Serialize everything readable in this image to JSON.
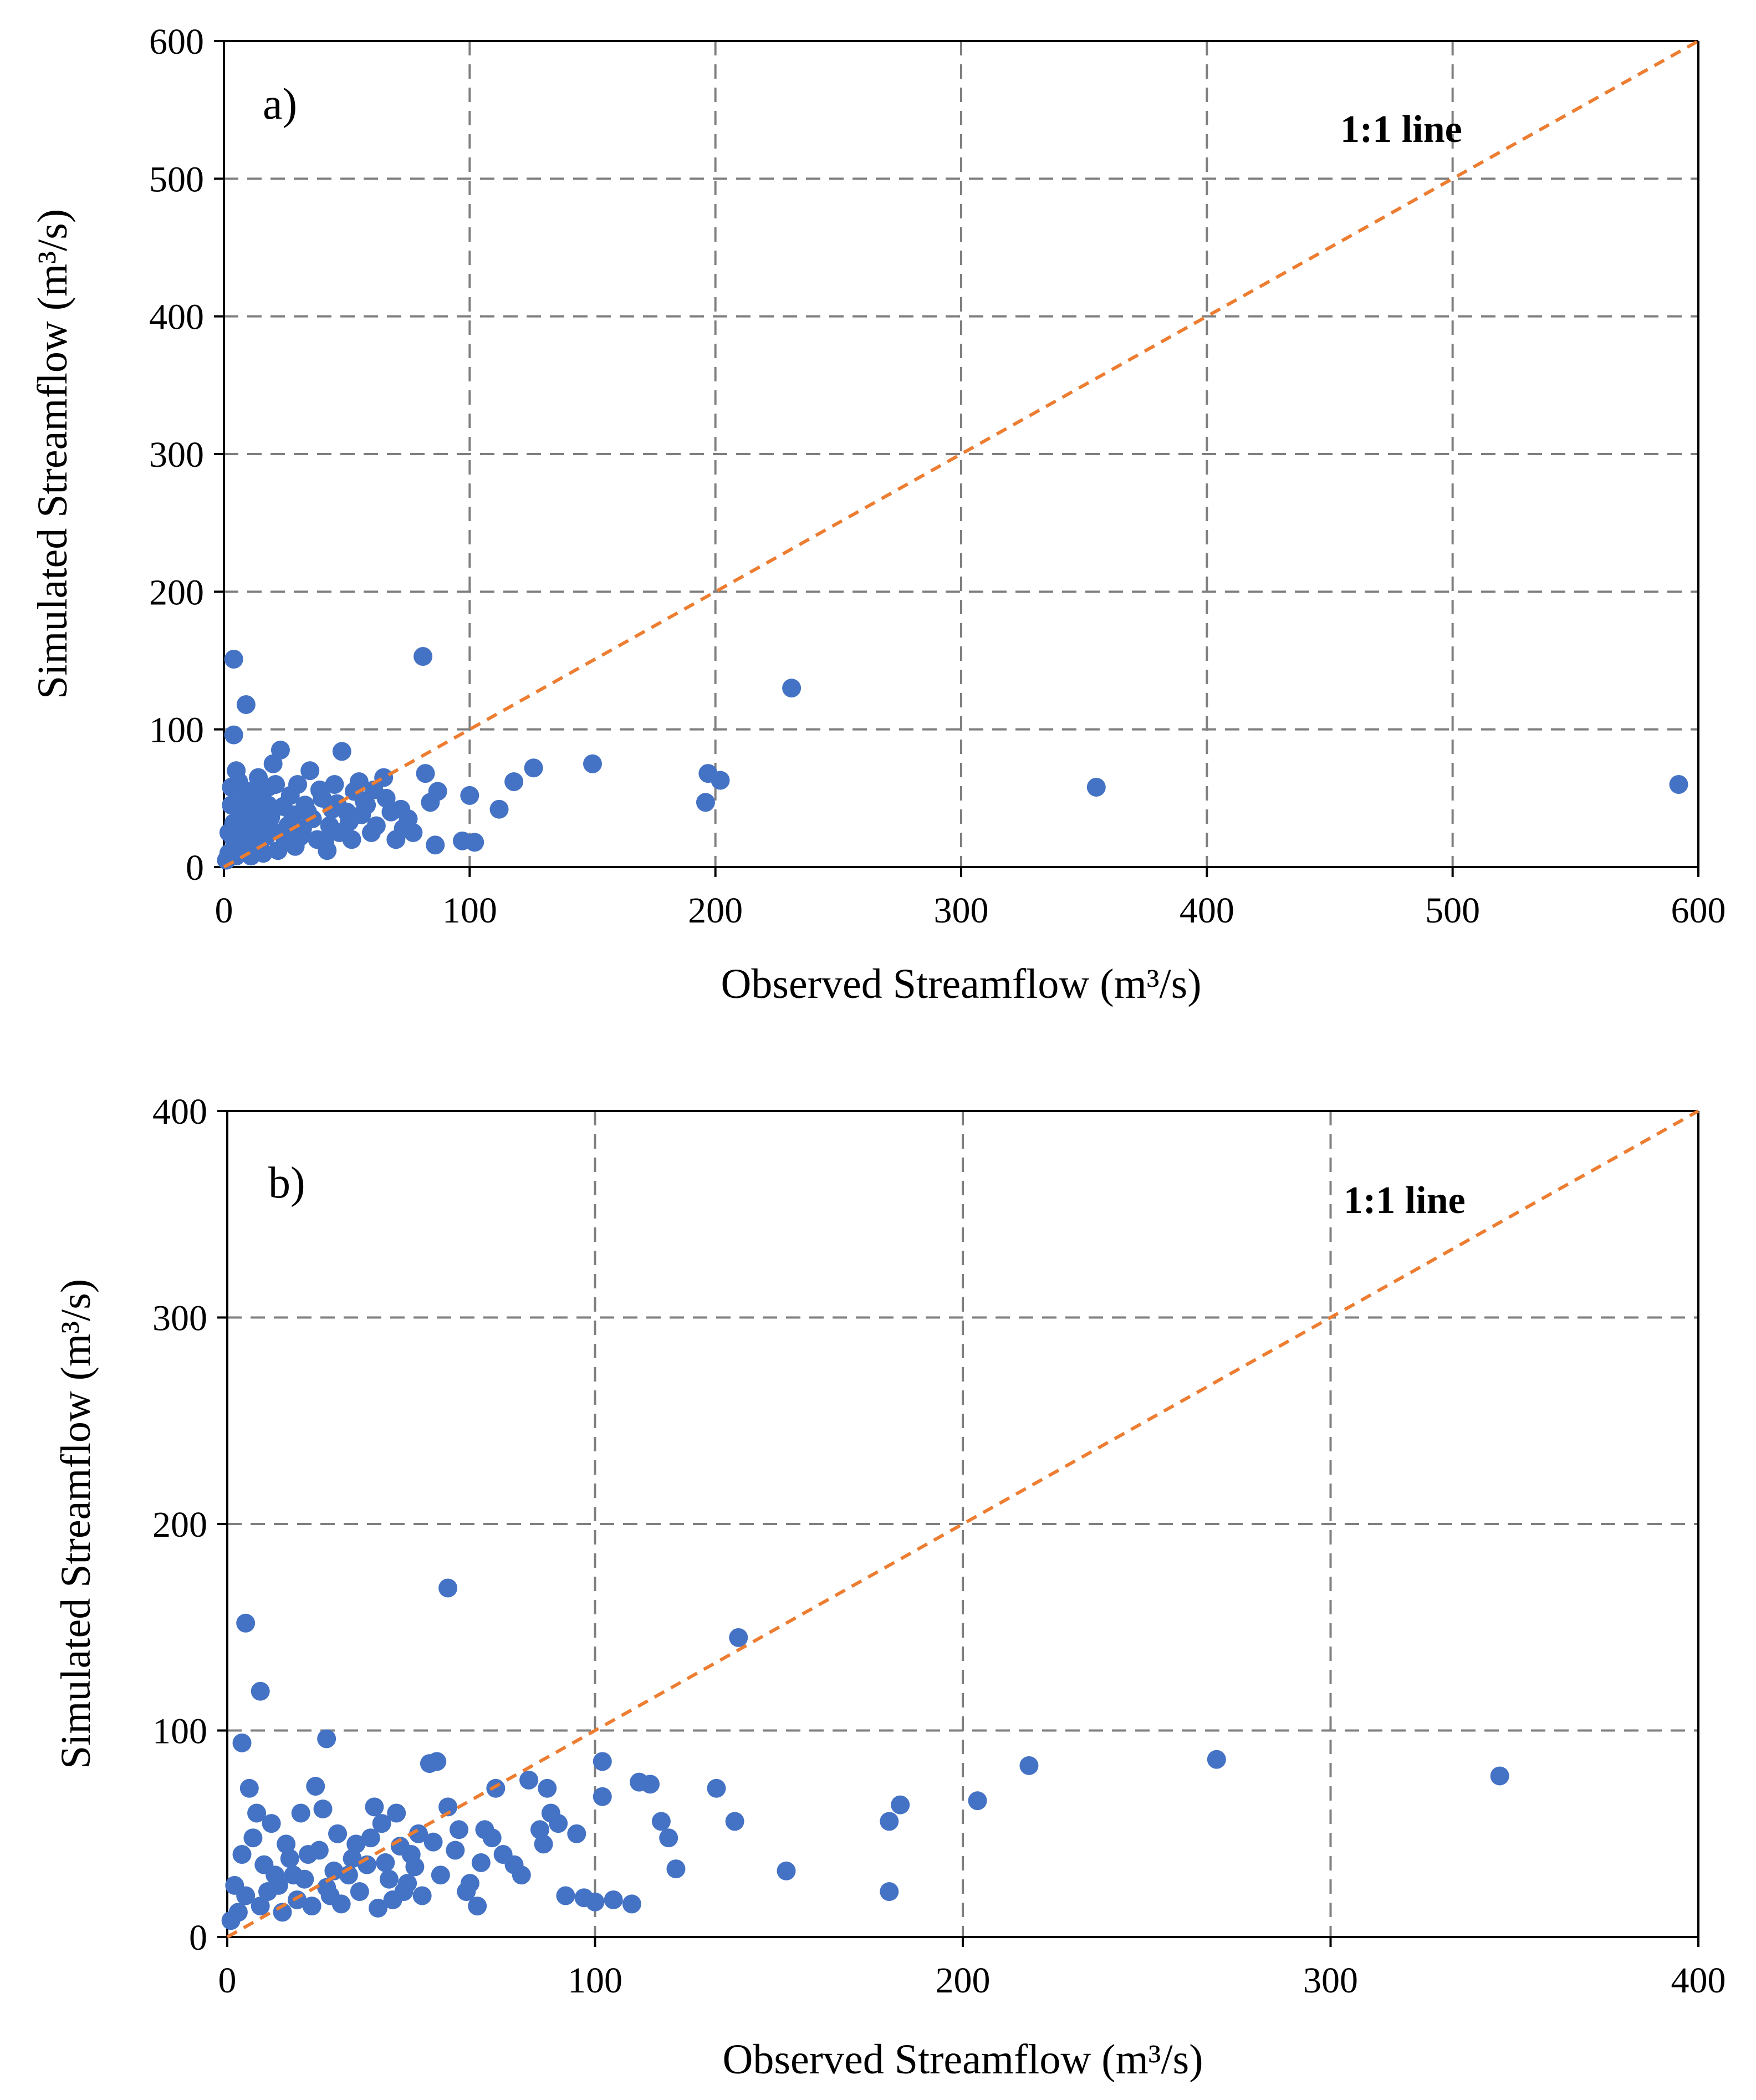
{
  "chart_data": [
    {
      "type": "scatter",
      "panel_label": "a)",
      "xlabel": "Observed Streamflow (m³/s)",
      "ylabel": "Simulated Streamflow (m³/s)",
      "xlim": [
        0,
        600
      ],
      "ylim": [
        0,
        600
      ],
      "xticks": [
        0,
        100,
        200,
        300,
        400,
        500,
        600
      ],
      "yticks": [
        0,
        100,
        200,
        300,
        400,
        500,
        600
      ],
      "grid": true,
      "reference_line": {
        "label": "1:1 line",
        "from": [
          0,
          0
        ],
        "to": [
          600,
          600
        ],
        "color": "#ED7D31"
      },
      "marker_color": "#4472C4",
      "series": [
        {
          "name": "Streamflow",
          "points": [
            [
              4,
              151
            ],
            [
              9,
              118
            ],
            [
              4,
              96
            ],
            [
              81,
              153
            ],
            [
              231,
              130
            ],
            [
              150,
              75
            ],
            [
              126,
              72
            ],
            [
              118,
              62
            ],
            [
              112,
              42
            ],
            [
              102,
              18
            ],
            [
              97,
              19
            ],
            [
              100,
              52
            ],
            [
              86,
              16
            ],
            [
              87,
              55
            ],
            [
              84,
              47
            ],
            [
              82,
              68
            ],
            [
              77,
              25
            ],
            [
              75,
              35
            ],
            [
              72,
              42
            ],
            [
              65,
              65
            ],
            [
              60,
              25
            ],
            [
              57,
              48
            ],
            [
              55,
              62
            ],
            [
              52,
              20
            ],
            [
              50,
              40
            ],
            [
              48,
              84
            ],
            [
              45,
              60
            ],
            [
              43,
              30
            ],
            [
              40,
              50
            ],
            [
              38,
              20
            ],
            [
              35,
              70
            ],
            [
              33,
              45
            ],
            [
              30,
              60
            ],
            [
              28,
              38
            ],
            [
              25,
              20
            ],
            [
              23,
              85
            ],
            [
              21,
              60
            ],
            [
              20,
              75
            ],
            [
              18,
              45
            ],
            [
              16,
              30
            ],
            [
              15,
              55
            ],
            [
              12,
              40
            ],
            [
              10,
              25
            ],
            [
              8,
              50
            ],
            [
              6,
              35
            ],
            [
              5,
              70
            ],
            [
              4,
              20
            ],
            [
              3,
              45
            ],
            [
              2,
              10
            ],
            [
              1,
              5
            ],
            [
              7,
              12
            ],
            [
              11,
              8
            ],
            [
              14,
              15
            ],
            [
              17,
              22
            ],
            [
              22,
              12
            ],
            [
              26,
              30
            ],
            [
              29,
              15
            ],
            [
              32,
              28
            ],
            [
              36,
              35
            ],
            [
              41,
              18
            ],
            [
              44,
              42
            ],
            [
              47,
              25
            ],
            [
              53,
              55
            ],
            [
              58,
              45
            ],
            [
              62,
              30
            ],
            [
              66,
              50
            ],
            [
              70,
              20
            ],
            [
              3,
              58
            ],
            [
              6,
              62
            ],
            [
              9,
              28
            ],
            [
              13,
              48
            ],
            [
              19,
              36
            ],
            [
              24,
              44
            ],
            [
              27,
              52
            ],
            [
              31,
              22
            ],
            [
              34,
              40
            ],
            [
              39,
              56
            ],
            [
              42,
              12
            ],
            [
              46,
              46
            ],
            [
              51,
              33
            ],
            [
              56,
              38
            ],
            [
              61,
              56
            ],
            [
              68,
              40
            ],
            [
              73,
              28
            ],
            [
              5,
              8
            ],
            [
              8,
              18
            ],
            [
              12,
              30
            ],
            [
              16,
              10
            ],
            [
              20,
              26
            ],
            [
              2,
              25
            ],
            [
              4,
              32
            ],
            [
              7,
              42
            ],
            [
              10,
              55
            ],
            [
              14,
              65
            ],
            [
              18,
              58
            ],
            [
              196,
              47
            ],
            [
              197,
              68
            ],
            [
              202,
              63
            ],
            [
              355,
              58
            ],
            [
              592,
              60
            ]
          ]
        }
      ]
    },
    {
      "type": "scatter",
      "panel_label": "b)",
      "xlabel": "Observed Streamflow (m³/s)",
      "ylabel": "Simulated Streamflow (m³/s)",
      "xlim": [
        0,
        400
      ],
      "ylim": [
        0,
        400
      ],
      "xticks": [
        0,
        100,
        200,
        300,
        400
      ],
      "yticks": [
        0,
        100,
        200,
        300,
        400
      ],
      "grid": true,
      "reference_line": {
        "label": "1:1 line",
        "from": [
          0,
          0
        ],
        "to": [
          400,
          400
        ],
        "color": "#ED7D31"
      },
      "marker_color": "#4472C4",
      "series": [
        {
          "name": "Streamflow",
          "points": [
            [
              5,
              152
            ],
            [
              9,
              119
            ],
            [
              4,
              94
            ],
            [
              27,
              96
            ],
            [
              60,
              169
            ],
            [
              139,
              145
            ],
            [
              102,
              85
            ],
            [
              112,
              75
            ],
            [
              115,
              74
            ],
            [
              133,
              72
            ],
            [
              138,
              56
            ],
            [
              152,
              32
            ],
            [
              122,
              33
            ],
            [
              120,
              48
            ],
            [
              118,
              56
            ],
            [
              105,
              18
            ],
            [
              110,
              16
            ],
            [
              100,
              17
            ],
            [
              97,
              19
            ],
            [
              95,
              50
            ],
            [
              92,
              20
            ],
            [
              90,
              55
            ],
            [
              88,
              60
            ],
            [
              87,
              72
            ],
            [
              86,
              45
            ],
            [
              85,
              52
            ],
            [
              82,
              76
            ],
            [
              80,
              30
            ],
            [
              78,
              35
            ],
            [
              75,
              40
            ],
            [
              73,
              72
            ],
            [
              70,
              52
            ],
            [
              68,
              15
            ],
            [
              66,
              26
            ],
            [
              63,
              52
            ],
            [
              60,
              63
            ],
            [
              57,
              85
            ],
            [
              55,
              84
            ],
            [
              52,
              50
            ],
            [
              50,
              40
            ],
            [
              48,
              22
            ],
            [
              46,
              60
            ],
            [
              44,
              28
            ],
            [
              42,
              55
            ],
            [
              40,
              63
            ],
            [
              38,
              35
            ],
            [
              35,
              45
            ],
            [
              33,
              30
            ],
            [
              30,
              50
            ],
            [
              28,
              20
            ],
            [
              26,
              62
            ],
            [
              24,
              73
            ],
            [
              22,
              40
            ],
            [
              20,
              60
            ],
            [
              18,
              30
            ],
            [
              16,
              45
            ],
            [
              14,
              25
            ],
            [
              12,
              55
            ],
            [
              10,
              35
            ],
            [
              8,
              60
            ],
            [
              7,
              48
            ],
            [
              6,
              72
            ],
            [
              5,
              20
            ],
            [
              4,
              40
            ],
            [
              3,
              12
            ],
            [
              2,
              25
            ],
            [
              1,
              8
            ],
            [
              9,
              15
            ],
            [
              11,
              22
            ],
            [
              13,
              30
            ],
            [
              15,
              12
            ],
            [
              17,
              38
            ],
            [
              19,
              18
            ],
            [
              21,
              28
            ],
            [
              23,
              15
            ],
            [
              25,
              42
            ],
            [
              27,
              24
            ],
            [
              29,
              32
            ],
            [
              31,
              16
            ],
            [
              34,
              38
            ],
            [
              36,
              22
            ],
            [
              39,
              48
            ],
            [
              41,
              14
            ],
            [
              43,
              36
            ],
            [
              45,
              18
            ],
            [
              47,
              44
            ],
            [
              49,
              26
            ],
            [
              51,
              34
            ],
            [
              53,
              20
            ],
            [
              56,
              46
            ],
            [
              58,
              30
            ],
            [
              62,
              42
            ],
            [
              65,
              22
            ],
            [
              69,
              36
            ],
            [
              72,
              48
            ],
            [
              102,
              68
            ],
            [
              180,
              22
            ],
            [
              180,
              56
            ],
            [
              183,
              64
            ],
            [
              204,
              66
            ],
            [
              218,
              83
            ],
            [
              269,
              86
            ],
            [
              346,
              78
            ]
          ]
        }
      ]
    }
  ]
}
